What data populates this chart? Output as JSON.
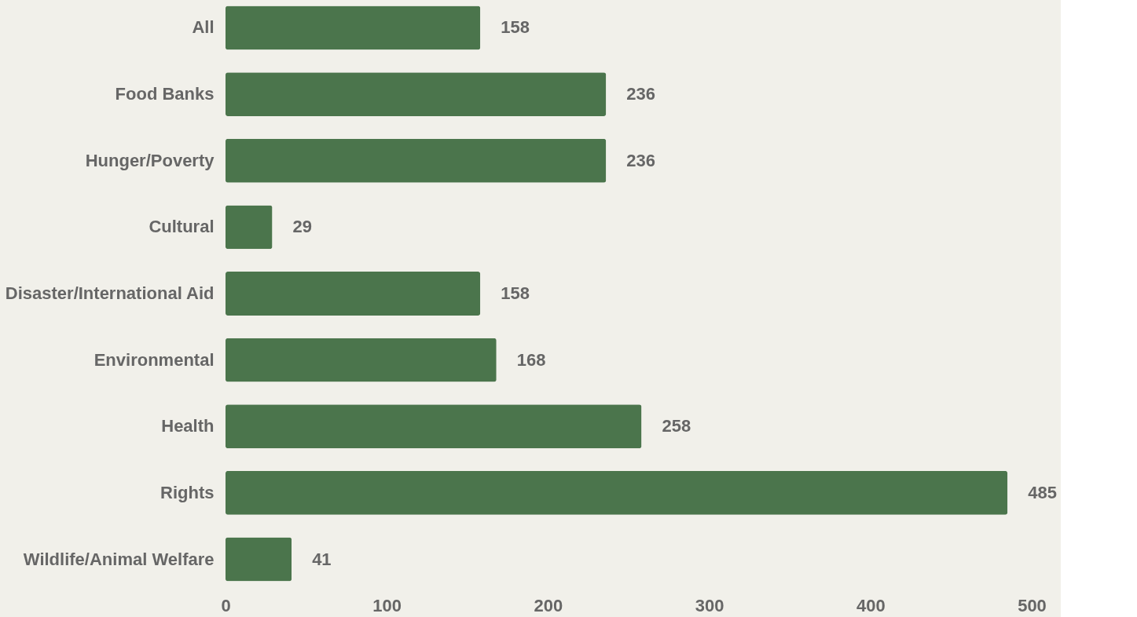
{
  "chart_data": {
    "type": "bar",
    "orientation": "horizontal",
    "categories": [
      "All",
      "Food Banks",
      "Hunger/Poverty",
      "Cultural",
      "Disaster/International Aid",
      "Environmental",
      "Health",
      "Rights",
      "Wildlife/Animal Welfare"
    ],
    "values": [
      158,
      236,
      236,
      29,
      158,
      168,
      258,
      485,
      41
    ],
    "color": "#4b754c",
    "xlim": [
      0,
      500
    ],
    "xticks": [
      0,
      100,
      200,
      300,
      400,
      500
    ],
    "grid": false,
    "data_labels": true
  }
}
